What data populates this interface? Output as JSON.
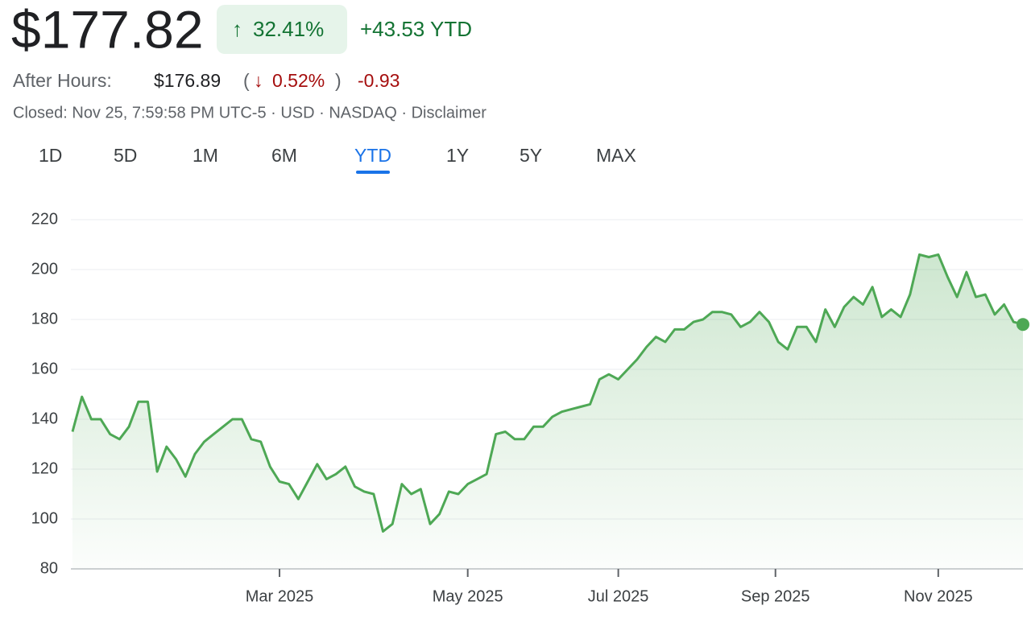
{
  "header": {
    "price": "$177.82",
    "change_pct": "32.41%",
    "change_abs": "+43.53 YTD",
    "after_hours_label": "After Hours:",
    "after_price": "$176.89",
    "after_pct": "0.52%",
    "after_abs": "-0.93",
    "status": "Closed: Nov 25, 7:59:58 PM UTC-5 · USD · NASDAQ · Disclaimer"
  },
  "tabs": {
    "items": [
      "1D",
      "5D",
      "1M",
      "6M",
      "YTD",
      "1Y",
      "5Y",
      "MAX"
    ],
    "active": 4
  },
  "chart_data": {
    "type": "line",
    "color": "#4ea855",
    "grid": true,
    "values": [
      135,
      149,
      140,
      140,
      134,
      132,
      137,
      147,
      147,
      119,
      129,
      124,
      117,
      126,
      131,
      134,
      137,
      140,
      140,
      132,
      131,
      121,
      115,
      114,
      108,
      115,
      122,
      116,
      118,
      121,
      113,
      111,
      110,
      95,
      98,
      114,
      110,
      112,
      98,
      102,
      111,
      110,
      114,
      116,
      118,
      134,
      135,
      132,
      132,
      137,
      137,
      141,
      143,
      144,
      145,
      146,
      156,
      158,
      156,
      160,
      164,
      169,
      173,
      171,
      176,
      176,
      179,
      180,
      183,
      183,
      182,
      177,
      179,
      183,
      179,
      171,
      168,
      177,
      177,
      171,
      184,
      177,
      185,
      189,
      186,
      193,
      181,
      184,
      181,
      190,
      206,
      205,
      206,
      197,
      189,
      199,
      189,
      190,
      182,
      186,
      179,
      178
    ],
    "xlim": [
      0,
      101
    ],
    "xticks": [
      {
        "value": 22,
        "label": "Mar 2025"
      },
      {
        "value": 42,
        "label": "May 2025"
      },
      {
        "value": 58,
        "label": "Jul 2025"
      },
      {
        "value": 74.7,
        "label": "Sep 2025"
      },
      {
        "value": 92,
        "label": "Nov 2025"
      }
    ],
    "ylim": [
      80,
      220
    ],
    "yticks": [
      80,
      100,
      120,
      140,
      160,
      180,
      200,
      220
    ]
  }
}
